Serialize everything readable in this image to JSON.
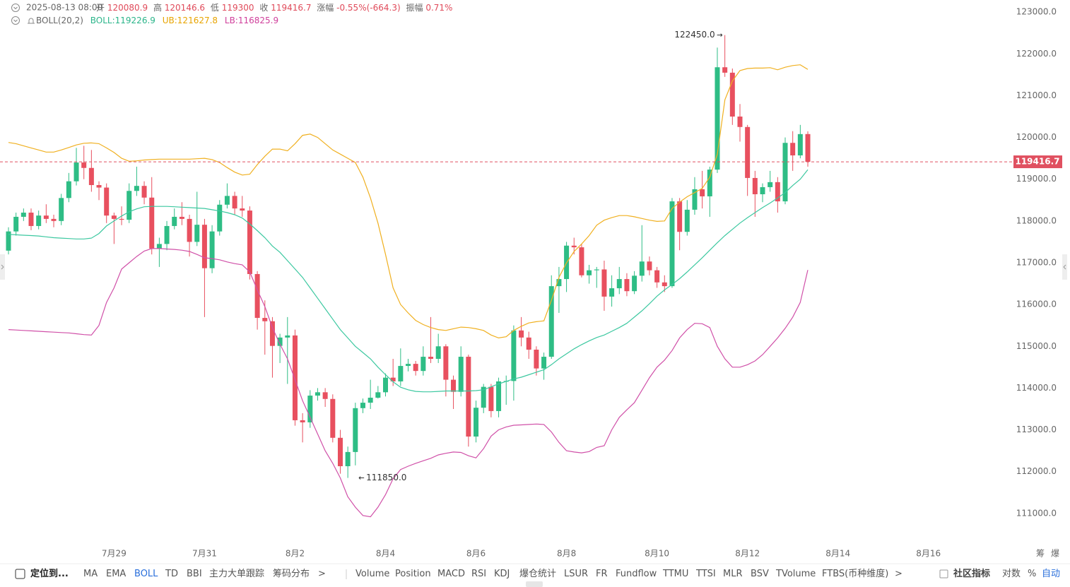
{
  "header": {
    "time": "2025-08-13 08:00",
    "open_label": "开",
    "high_label": "高",
    "low_label": "低",
    "close_label": "收",
    "change_label": "涨幅",
    "change": "-0.55%(-664.3)",
    "amplitude_label": "振幅",
    "amplitude": "0.71%"
  },
  "indicator": {
    "name": "BOLL(20,2)",
    "mid_label": "BOLL:",
    "upper_label": "UB:",
    "lower_label": "LB:"
  },
  "chart_data": {
    "type": "candlestick",
    "x_labels": [
      "7月29",
      "7月31",
      "8月2",
      "8月4",
      "8月6",
      "8月8",
      "8月10",
      "8月12",
      "8月14",
      "8月16"
    ],
    "up_color": "#2ebd85",
    "down_color": "#e8505f",
    "candles": {
      "open": [
        117290,
        117750,
        118100,
        118200,
        117880,
        118130,
        118050,
        118000,
        118550,
        118950,
        119400,
        119270,
        118860,
        118800,
        118130,
        118050,
        118030,
        118720,
        118840,
        118560,
        117340,
        117450,
        117880,
        118100,
        118050,
        117500,
        117910,
        116870,
        117750,
        118390,
        118600,
        118300,
        118250,
        116730,
        115680,
        115600,
        115010,
        115210,
        115260,
        113230,
        113180,
        113820,
        113900,
        113740,
        112810,
        112130,
        112470,
        113520,
        113650,
        113770,
        113900,
        114250,
        114160,
        114530,
        114580,
        114410,
        114750,
        114700,
        115000,
        114200,
        113910,
        114750,
        112840,
        113530,
        114030,
        113450,
        114160,
        114170,
        115380,
        115210,
        114920,
        114470,
        114750,
        116440,
        116610,
        117410,
        117370,
        116700,
        116820,
        116840,
        116190,
        116390,
        116610,
        116320,
        116690,
        117030,
        116820,
        116530,
        116440,
        118470,
        117740,
        118270,
        118760,
        118590,
        119230,
        121680,
        121550,
        120500,
        120250,
        119030,
        118640,
        118810,
        118930,
        118470,
        119870,
        119570,
        120080.9
      ],
      "high": [
        117850,
        118200,
        118300,
        118300,
        118250,
        118400,
        118150,
        118650,
        119150,
        119750,
        119800,
        119700,
        118950,
        118900,
        118200,
        118350,
        118900,
        119300,
        118950,
        119050,
        117600,
        118000,
        118300,
        118450,
        118150,
        118700,
        118050,
        117900,
        118500,
        118900,
        118700,
        118600,
        118350,
        116800,
        116100,
        115700,
        115300,
        115700,
        115400,
        113400,
        113950,
        114000,
        114000,
        113850,
        113000,
        112600,
        113650,
        113750,
        114200,
        114050,
        114350,
        114700,
        114950,
        114700,
        114650,
        115000,
        115700,
        115300,
        115050,
        114300,
        115000,
        114800,
        113700,
        114100,
        114100,
        114250,
        114300,
        115500,
        115700,
        115350,
        115000,
        114850,
        116700,
        116900,
        117500,
        117600,
        117450,
        116950,
        116900,
        117050,
        116700,
        116900,
        116750,
        116800,
        117900,
        117150,
        116900,
        116700,
        118550,
        118550,
        118500,
        119050,
        119200,
        119300,
        122150,
        122450,
        121650,
        120800,
        120300,
        119200,
        118900,
        119200,
        119050,
        120000,
        120150,
        120300,
        120146.6
      ],
      "low": [
        117200,
        117650,
        118000,
        117780,
        117800,
        117950,
        117850,
        117900,
        118450,
        118850,
        119000,
        118700,
        118500,
        117950,
        117450,
        117900,
        117950,
        118600,
        118400,
        117200,
        116900,
        117300,
        117800,
        117900,
        117150,
        117400,
        115700,
        116750,
        117650,
        118300,
        118150,
        118100,
        116600,
        115400,
        114800,
        114250,
        114600,
        114100,
        113100,
        112700,
        113050,
        113700,
        113550,
        112700,
        111950,
        111850,
        112150,
        113400,
        113500,
        113750,
        113800,
        114050,
        114050,
        114400,
        114300,
        114300,
        114600,
        114600,
        113800,
        113500,
        113800,
        112600,
        112700,
        113400,
        113300,
        113300,
        113600,
        113700,
        115000,
        114700,
        114300,
        114200,
        114700,
        115800,
        116300,
        117200,
        116650,
        116500,
        116400,
        115850,
        115950,
        116250,
        116200,
        116250,
        116550,
        116700,
        116400,
        116300,
        116400,
        117300,
        117650,
        118150,
        118300,
        118100,
        119150,
        121450,
        120300,
        119900,
        118600,
        118100,
        118450,
        118700,
        118200,
        118400,
        119200,
        119500,
        119300
      ],
      "close": [
        117750,
        118100,
        118200,
        117880,
        118130,
        118050,
        118000,
        118550,
        118950,
        119400,
        119270,
        118860,
        118800,
        118130,
        118050,
        118030,
        118720,
        118840,
        118560,
        117340,
        117450,
        117880,
        118100,
        118050,
        117500,
        117910,
        116870,
        117750,
        118390,
        118600,
        118300,
        118250,
        116730,
        115680,
        115600,
        115010,
        115210,
        115260,
        113230,
        113180,
        113820,
        113900,
        113740,
        112810,
        112130,
        112470,
        113520,
        113650,
        113770,
        113900,
        114250,
        114160,
        114530,
        114580,
        114410,
        114750,
        114700,
        115000,
        114200,
        113910,
        114750,
        112840,
        113530,
        114030,
        113450,
        114160,
        114170,
        115380,
        115210,
        114920,
        114470,
        114750,
        116440,
        116610,
        117410,
        117370,
        116700,
        116820,
        116840,
        116190,
        116390,
        116610,
        116320,
        116690,
        117030,
        116820,
        116530,
        116440,
        118470,
        117740,
        118270,
        118760,
        118590,
        119230,
        121680,
        121550,
        120500,
        120250,
        119030,
        118640,
        118810,
        118930,
        118470,
        119870,
        119570,
        120080,
        119416.7
      ]
    },
    "max_label": "122450.0",
    "min_label": "111850.0",
    "series": [
      {
        "name": "mid",
        "color": "#3cc8a0",
        "values": [
          117680,
          117670,
          117660,
          117650,
          117640,
          117620,
          117600,
          117590,
          117580,
          117570,
          117570,
          117590,
          117700,
          117880,
          118000,
          118120,
          118220,
          118290,
          118340,
          118350,
          118350,
          118350,
          118340,
          118330,
          118320,
          118310,
          118300,
          118270,
          118240,
          118200,
          118150,
          118070,
          117930,
          117770,
          117600,
          117400,
          117250,
          117050,
          116850,
          116650,
          116400,
          116150,
          115900,
          115650,
          115400,
          115200,
          115000,
          114850,
          114700,
          114500,
          114320,
          114150,
          114020,
          113960,
          113920,
          113910,
          113910,
          113920,
          113930,
          113930,
          113930,
          113930,
          113940,
          113960,
          114030,
          114100,
          114160,
          114220,
          114260,
          114320,
          114380,
          114440,
          114560,
          114700,
          114820,
          114940,
          115040,
          115130,
          115210,
          115270,
          115360,
          115450,
          115550,
          115700,
          115850,
          116020,
          116200,
          116350,
          116480,
          116620,
          116780,
          116950,
          117120,
          117300,
          117480,
          117650,
          117800,
          117950,
          118080,
          118200,
          118320,
          118430,
          118550,
          118680,
          118850,
          119000,
          119226.9
        ]
      },
      {
        "name": "upper",
        "color": "#f0b020",
        "values": [
          119880,
          119850,
          119800,
          119750,
          119700,
          119650,
          119650,
          119700,
          119760,
          119820,
          119860,
          119870,
          119850,
          119750,
          119640,
          119500,
          119430,
          119440,
          119460,
          119470,
          119480,
          119480,
          119480,
          119480,
          119480,
          119490,
          119500,
          119470,
          119400,
          119280,
          119170,
          119100,
          119120,
          119350,
          119550,
          119720,
          119720,
          119680,
          119850,
          120050,
          120080,
          120000,
          119850,
          119700,
          119600,
          119500,
          119400,
          119050,
          118550,
          117950,
          117200,
          116400,
          116000,
          115800,
          115620,
          115520,
          115450,
          115400,
          115380,
          115420,
          115460,
          115450,
          115420,
          115380,
          115270,
          115200,
          115230,
          115380,
          115480,
          115560,
          115590,
          115610,
          116100,
          116650,
          117000,
          117270,
          117450,
          117650,
          117900,
          118020,
          118080,
          118130,
          118130,
          118100,
          118060,
          118020,
          117990,
          118000,
          118300,
          118450,
          118580,
          118680,
          118780,
          119050,
          119600,
          120900,
          121350,
          121600,
          121650,
          121660,
          121660,
          121670,
          121620,
          121680,
          121720,
          121740,
          121627.8
        ]
      },
      {
        "name": "lower",
        "color": "#d050a8",
        "values": [
          115400,
          115390,
          115380,
          115370,
          115360,
          115350,
          115340,
          115330,
          115320,
          115300,
          115280,
          115270,
          115500,
          116050,
          116400,
          116850,
          117000,
          117150,
          117280,
          117340,
          117340,
          117330,
          117320,
          117300,
          117270,
          117200,
          117120,
          117100,
          117070,
          117020,
          116980,
          116950,
          116780,
          116350,
          115950,
          115450,
          115050,
          114700,
          114200,
          113700,
          113300,
          112900,
          112500,
          112200,
          111850,
          111400,
          111150,
          110950,
          110920,
          111150,
          111450,
          111830,
          112050,
          112130,
          112200,
          112260,
          112320,
          112400,
          112440,
          112470,
          112460,
          112380,
          112330,
          112550,
          112850,
          113000,
          113070,
          113110,
          113120,
          113130,
          113140,
          113130,
          112950,
          112700,
          112500,
          112470,
          112450,
          112480,
          112580,
          112620,
          113000,
          113300,
          113480,
          113650,
          113950,
          114250,
          114500,
          114670,
          114900,
          115200,
          115400,
          115550,
          115540,
          115450,
          115000,
          114700,
          114500,
          114500,
          114560,
          114650,
          114800,
          115000,
          115200,
          115430,
          115700,
          116050,
          116825.9
        ]
      }
    ],
    "price_line_color": "#e05060",
    "ylim": [
      110270,
      123290
    ],
    "yticks": [
      {
        "value": 123000,
        "label": "123000.0"
      },
      {
        "value": 122000,
        "label": "122000.0"
      },
      {
        "value": 121000,
        "label": "121000.0"
      },
      {
        "value": 120000,
        "label": "120000.0"
      },
      {
        "value": 119000,
        "label": "119000.0"
      },
      {
        "value": 118000,
        "label": "118000.0"
      },
      {
        "value": 117000,
        "label": "117000.0"
      },
      {
        "value": 116000,
        "label": "116000.0"
      },
      {
        "value": 115000,
        "label": "115000.0"
      },
      {
        "value": 114000,
        "label": "114000.0"
      },
      {
        "value": 113000,
        "label": "113000.0"
      },
      {
        "value": 112000,
        "label": "112000.0"
      },
      {
        "value": 111000,
        "label": "111000.0"
      }
    ],
    "grid": false
  },
  "axis_tools": [
    "筹",
    "爆"
  ],
  "toolbar": {
    "locate": "定位到...",
    "items": [
      "MA",
      "EMA",
      "BOLL",
      "TD",
      "BBI",
      "主力大单跟踪",
      "筹码分布",
      ">",
      "Volume",
      "Position",
      "MACD",
      "RSI",
      "KDJ",
      "爆仓统计",
      "LSUR",
      "FR",
      "Fundflow",
      "TTMU",
      "TTSI",
      "MLR",
      "BSV",
      "TVolume",
      "FTBS(币种维度)",
      ">"
    ],
    "right": [
      "社区指标",
      "对数",
      "%",
      "自动"
    ]
  }
}
